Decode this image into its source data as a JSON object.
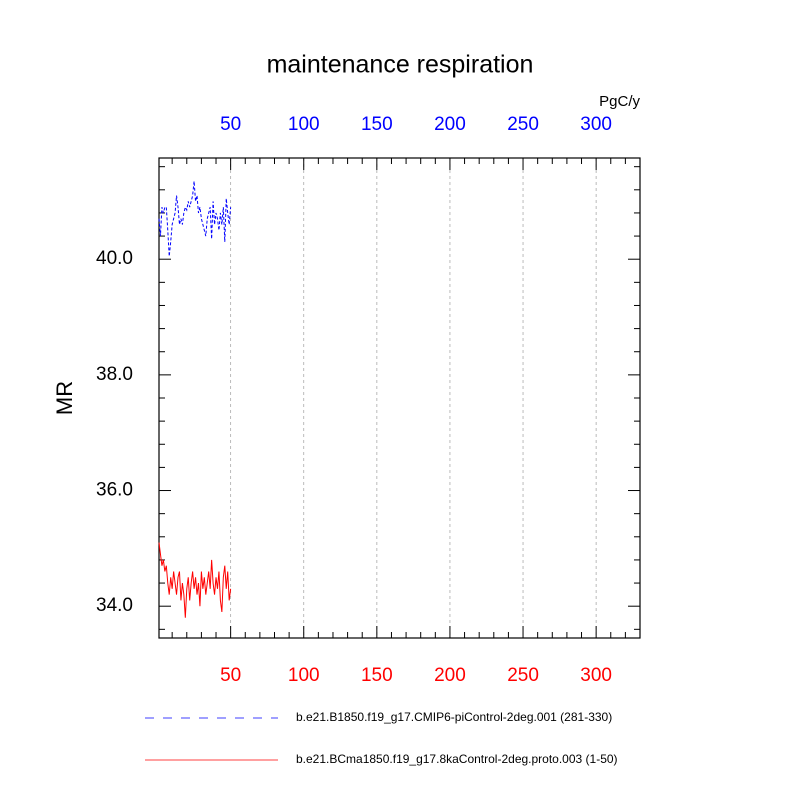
{
  "chart_data": {
    "type": "line",
    "title": "maintenance respiration",
    "y_label": "MR",
    "units": "PgC/y",
    "x": [
      1,
      2,
      3,
      4,
      5,
      6,
      7,
      8,
      9,
      10,
      11,
      12,
      13,
      14,
      15,
      16,
      17,
      18,
      19,
      20,
      21,
      22,
      23,
      24,
      25,
      26,
      27,
      28,
      29,
      30,
      31,
      32,
      33,
      34,
      35,
      36,
      37,
      38,
      39,
      40,
      41,
      42,
      43,
      44,
      45,
      46,
      47,
      48,
      49,
      50
    ],
    "series": [
      {
        "name": "b.e21.B1850.f19_g17.CMIP6-piControl-2deg.001 (281-330)",
        "color": "#0000ff",
        "dash": "dashed",
        "values": [
          40.7,
          40.4,
          40.9,
          40.8,
          40.9,
          40.9,
          40.5,
          40.05,
          40.3,
          40.6,
          40.7,
          40.8,
          41.1,
          40.9,
          40.6,
          40.7,
          40.6,
          40.8,
          40.9,
          40.85,
          41.0,
          40.9,
          41.0,
          41.1,
          41.35,
          41.0,
          41.1,
          40.8,
          40.9,
          40.7,
          40.6,
          40.5,
          40.4,
          40.7,
          40.8,
          40.9,
          40.35,
          41.0,
          40.6,
          40.8,
          40.7,
          40.5,
          40.8,
          40.6,
          40.9,
          40.3,
          41.05,
          40.8,
          40.6,
          40.9
        ]
      },
      {
        "name": "b.e21.BCma1850.f19_g17.8kaControl-2deg.proto.003 (1-50)",
        "color": "#ff0000",
        "dash": "solid",
        "values": [
          35.1,
          34.9,
          34.7,
          34.8,
          34.6,
          34.7,
          34.4,
          34.2,
          34.5,
          34.3,
          34.6,
          34.4,
          34.2,
          34.5,
          34.6,
          34.1,
          34.4,
          34.2,
          33.8,
          34.3,
          34.5,
          34.1,
          34.4,
          34.6,
          34.3,
          34.5,
          34.2,
          34.4,
          34.0,
          34.6,
          34.3,
          34.5,
          34.2,
          34.4,
          34.6,
          34.3,
          34.8,
          34.4,
          34.2,
          34.5,
          34.3,
          34.6,
          34.1,
          33.9,
          34.5,
          34.7,
          34.3,
          34.6,
          34.1,
          34.3
        ]
      }
    ],
    "xlim": [
      1,
      330
    ],
    "ylim": [
      33.45,
      41.75
    ],
    "xticks": [
      50,
      100,
      150,
      200,
      250,
      300
    ],
    "yticks": [
      {
        "value": 34,
        "label": "34.0"
      },
      {
        "value": 36,
        "label": "36.0"
      },
      {
        "value": 38,
        "label": "38.0"
      },
      {
        "value": 40,
        "label": "40.0"
      }
    ],
    "xminorticks": [
      10,
      20,
      30,
      40,
      60,
      70,
      80,
      90,
      110,
      120,
      130,
      140,
      160,
      170,
      180,
      190,
      210,
      220,
      230,
      240,
      260,
      270,
      280,
      290,
      310,
      320
    ],
    "yminorticks": [
      33.6,
      34.4,
      34.8,
      35.2,
      35.6,
      36.4,
      36.8,
      37.2,
      37.6,
      38.4,
      38.8,
      39.2,
      39.6,
      40.4,
      40.8,
      41.2,
      41.6
    ],
    "top_tick_color": "#0000ff",
    "bottom_tick_color": "#ff0000",
    "grid": true
  }
}
